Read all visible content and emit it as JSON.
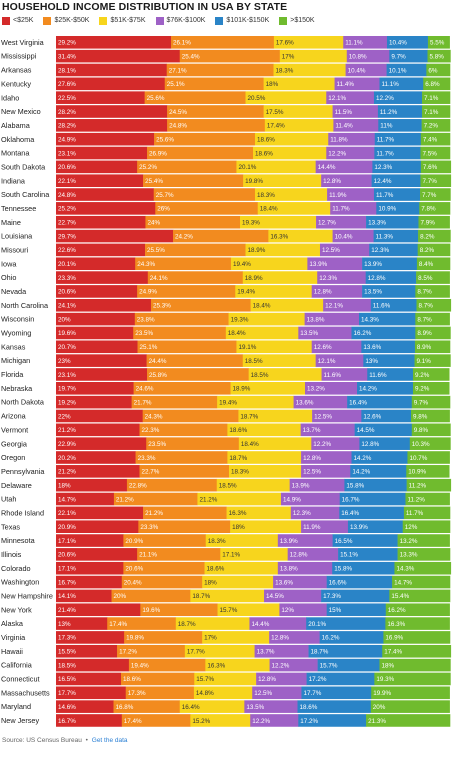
{
  "title": "HOUSEHOLD INCOME DISTRIBUTION IN USA BY STATE",
  "legend": [
    {
      "label": "<$25K",
      "color": "#d42a2a"
    },
    {
      "label": "$25K-$50K",
      "color": "#f28b1f"
    },
    {
      "label": "$51K-$75K",
      "color": "#f7d51d"
    },
    {
      "label": "$76K-$100K",
      "color": "#9e61c6"
    },
    {
      "label": "$101K-$150K",
      "color": "#2a84c7"
    },
    {
      "label": ">$150K",
      "color": "#70bb2e"
    }
  ],
  "footer": {
    "source": "Source: US Census Bureau",
    "separator": "•",
    "link": "Get the data"
  },
  "chart_data": {
    "type": "bar",
    "orientation": "horizontal",
    "stacked": true,
    "xlim": [
      0,
      100
    ],
    "title": "HOUSEHOLD INCOME DISTRIBUTION IN USA BY STATE",
    "categories": [
      "West Virginia",
      "Mississippi",
      "Arkansas",
      "Kentucky",
      "Idaho",
      "New Mexico",
      "Alabama",
      "Oklahoma",
      "Montana",
      "South Dakota",
      "Indiana",
      "South Carolina",
      "Tennessee",
      "Maine",
      "Louisiana",
      "Missouri",
      "Iowa",
      "Ohio",
      "Nevada",
      "North Carolina",
      "Wisconsin",
      "Wyoming",
      "Kansas",
      "Michigan",
      "Florida",
      "Nebraska",
      "North Dakota",
      "Arizona",
      "Vermont",
      "Georgia",
      "Oregon",
      "Pennsylvania",
      "Delaware",
      "Utah",
      "Rhode Island",
      "Texas",
      "Minnesota",
      "Illinois",
      "Colorado",
      "Washington",
      "New Hampshire",
      "New York",
      "Alaska",
      "Virginia",
      "Hawaii",
      "California",
      "Connecticut",
      "Massachusetts",
      "Maryland",
      "New Jersey"
    ],
    "series": [
      {
        "name": "<$25K",
        "labels": [
          "29.2%",
          "31.4%",
          "28.1%",
          "27.6%",
          "22.5%",
          "28.2%",
          "28.2%",
          "24.9%",
          "23.1%",
          "20.6%",
          "22.1%",
          "24.8%",
          "25.2%",
          "22.7%",
          "29.7%",
          "22.6%",
          "20.1%",
          "23.3%",
          "20.6%",
          "24.1%",
          "20%",
          "19.6%",
          "20.7%",
          "23%",
          "23.1%",
          "19.7%",
          "19.2%",
          "22%",
          "21.2%",
          "22.9%",
          "20.2%",
          "21.2%",
          "18%",
          "14.7%",
          "22.1%",
          "20.9%",
          "17.1%",
          "20.6%",
          "17.1%",
          "16.7%",
          "14.1%",
          "21.4%",
          "13%",
          "17.3%",
          "15.5%",
          "18.5%",
          "16.5%",
          "17.7%",
          "14.6%",
          "16.7%"
        ],
        "values": [
          29.2,
          31.4,
          28.1,
          27.6,
          22.5,
          28.2,
          28.2,
          24.9,
          23.1,
          20.6,
          22.1,
          24.8,
          25.2,
          22.7,
          29.7,
          22.6,
          20.1,
          23.3,
          20.6,
          24.1,
          20,
          19.6,
          20.7,
          23,
          23.1,
          19.7,
          19.2,
          22,
          21.2,
          22.9,
          20.2,
          21.2,
          18,
          14.7,
          22.1,
          20.9,
          17.1,
          20.6,
          17.1,
          16.7,
          14.1,
          21.4,
          13,
          17.3,
          15.5,
          18.5,
          16.5,
          17.7,
          14.6,
          16.7
        ]
      },
      {
        "name": "$25K-$50K",
        "labels": [
          "26.1%",
          "25.4%",
          "27.1%",
          "25.1%",
          "25.6%",
          "24.5%",
          "24.8%",
          "25.6%",
          "26.9%",
          "25.2%",
          "25.4%",
          "25.7%",
          "26%",
          "24%",
          "24.2%",
          "25.5%",
          "24.3%",
          "24.1%",
          "24.9%",
          "25.3%",
          "23.8%",
          "23.5%",
          "25.1%",
          "24.4%",
          "25.8%",
          "24.6%",
          "21.7%",
          "24.3%",
          "22.3%",
          "23.5%",
          "23.3%",
          "22.7%",
          "22.8%",
          "21.2%",
          "21.2%",
          "23.3%",
          "20.9%",
          "21.1%",
          "20.6%",
          "20.4%",
          "20%",
          "19.6%",
          "17.4%",
          "19.8%",
          "17.2%",
          "19.4%",
          "18.6%",
          "17.3%",
          "16.8%",
          "17.4%"
        ],
        "values": [
          26.1,
          25.4,
          27.1,
          25.1,
          25.6,
          24.5,
          24.8,
          25.6,
          26.9,
          25.2,
          25.4,
          25.7,
          26,
          24,
          24.2,
          25.5,
          24.3,
          24.1,
          24.9,
          25.3,
          23.8,
          23.5,
          25.1,
          24.4,
          25.8,
          24.6,
          21.7,
          24.3,
          22.3,
          23.5,
          23.3,
          22.7,
          22.8,
          21.2,
          21.2,
          23.3,
          20.9,
          21.1,
          20.6,
          20.4,
          20,
          19.6,
          17.4,
          19.8,
          17.2,
          19.4,
          18.6,
          17.3,
          16.8,
          17.4
        ]
      },
      {
        "name": "$51K-$75K",
        "labels": [
          "17.6%",
          "17%",
          "18.3%",
          "18%",
          "20.5%",
          "17.5%",
          "17.4%",
          "18.6%",
          "18.6%",
          "20.1%",
          "19.8%",
          "18.3%",
          "18.4%",
          "19.3%",
          "16.3%",
          "18.9%",
          "19.4%",
          "18.9%",
          "19.4%",
          "18.4%",
          "19.3%",
          "18.4%",
          "19.1%",
          "18.5%",
          "18.5%",
          "18.9%",
          "19.4%",
          "18.7%",
          "18.6%",
          "18.4%",
          "18.7%",
          "18.3%",
          "18.5%",
          "21.2%",
          "16.3%",
          "18%",
          "18.3%",
          "17.1%",
          "18.6%",
          "18%",
          "18.7%",
          "15.7%",
          "18.7%",
          "17%",
          "17.7%",
          "16.3%",
          "15.7%",
          "14.8%",
          "16.4%",
          "15.2%"
        ],
        "values": [
          17.6,
          17,
          18.3,
          18,
          20.5,
          17.5,
          17.4,
          18.6,
          18.6,
          20.1,
          19.8,
          18.3,
          18.4,
          19.3,
          16.3,
          18.9,
          19.4,
          18.9,
          19.4,
          18.4,
          19.3,
          18.4,
          19.1,
          18.5,
          18.5,
          18.9,
          19.4,
          18.7,
          18.6,
          18.4,
          18.7,
          18.3,
          18.5,
          21.2,
          16.3,
          18,
          18.3,
          17.1,
          18.6,
          18,
          18.7,
          15.7,
          18.7,
          17,
          17.7,
          16.3,
          15.7,
          14.8,
          16.4,
          15.2
        ]
      },
      {
        "name": "$76K-$100K",
        "labels": [
          "11.1%",
          "10.8%",
          "10.4%",
          "11.4%",
          "12.1%",
          "11.5%",
          "11.4%",
          "11.8%",
          "12.2%",
          "14.4%",
          "12.8%",
          "11.9%",
          "11.7%",
          "12.7%",
          "10.4%",
          "12.5%",
          "13.9%",
          "12.3%",
          "12.8%",
          "12.1%",
          "13.8%",
          "13.5%",
          "12.6%",
          "12.1%",
          "11.6%",
          "13.2%",
          "13.6%",
          "12.5%",
          "13.7%",
          "12.2%",
          "12.8%",
          "12.5%",
          "13.9%",
          "14.9%",
          "12.3%",
          "11.9%",
          "13.9%",
          "12.8%",
          "13.8%",
          "13.6%",
          "14.5%",
          "12%",
          "14.4%",
          "12.8%",
          "13.7%",
          "12.2%",
          "12.8%",
          "12.5%",
          "13.5%",
          "12.2%"
        ],
        "values": [
          11.1,
          10.8,
          10.4,
          11.4,
          12.1,
          11.5,
          11.4,
          11.8,
          12.2,
          14.4,
          12.8,
          11.9,
          11.7,
          12.7,
          10.4,
          12.5,
          13.9,
          12.3,
          12.8,
          12.1,
          13.8,
          13.5,
          12.6,
          12.1,
          11.6,
          13.2,
          13.6,
          12.5,
          13.7,
          12.2,
          12.8,
          12.5,
          13.9,
          14.9,
          12.3,
          11.9,
          13.9,
          12.8,
          13.8,
          13.6,
          14.5,
          12,
          14.4,
          12.8,
          13.7,
          12.2,
          12.8,
          12.5,
          13.5,
          12.2
        ]
      },
      {
        "name": "$101K-$150K",
        "labels": [
          "10.4%",
          "9.7%",
          "10.1%",
          "11.1%",
          "12.2%",
          "11.2%",
          "11%",
          "11.7%",
          "11.7%",
          "12.3%",
          "12.4%",
          "11.7%",
          "10.9%",
          "13.3%",
          "11.3%",
          "12.3%",
          "13.9%",
          "12.8%",
          "13.5%",
          "11.6%",
          "14.3%",
          "16.2%",
          "13.6%",
          "13%",
          "11.6%",
          "14.2%",
          "16.4%",
          "12.6%",
          "14.5%",
          "12.8%",
          "14.2%",
          "14.2%",
          "15.8%",
          "16.7%",
          "16.4%",
          "13.9%",
          "16.5%",
          "15.1%",
          "15.8%",
          "16.6%",
          "17.3%",
          "15%",
          "20.1%",
          "16.2%",
          "18.7%",
          "15.7%",
          "17.2%",
          "17.7%",
          "18.6%",
          "17.2%"
        ],
        "values": [
          10.4,
          9.7,
          10.1,
          11.1,
          12.2,
          11.2,
          11,
          11.7,
          11.7,
          12.3,
          12.4,
          11.7,
          10.9,
          13.3,
          11.3,
          12.3,
          13.9,
          12.8,
          13.5,
          11.6,
          14.3,
          16.2,
          13.6,
          13,
          11.6,
          14.2,
          16.4,
          12.6,
          14.5,
          12.8,
          14.2,
          14.2,
          15.8,
          16.7,
          16.4,
          13.9,
          16.5,
          15.1,
          15.8,
          16.6,
          17.3,
          15,
          20.1,
          16.2,
          18.7,
          15.7,
          17.2,
          17.7,
          18.6,
          17.2
        ]
      },
      {
        "name": ">$150K",
        "labels": [
          "5.5%",
          "5.8%",
          "6%",
          "6.8%",
          "7.1%",
          "7.1%",
          "7.2%",
          "7.4%",
          "7.5%",
          "7.6%",
          "7.7%",
          "7.7%",
          "7.8%",
          "7.9%",
          "8.2%",
          "8.2%",
          "8.4%",
          "8.5%",
          "8.7%",
          "8.7%",
          "8.7%",
          "8.9%",
          "8.9%",
          "9.1%",
          "9.2%",
          "9.2%",
          "9.7%",
          "9.8%",
          "9.8%",
          "10.3%",
          "10.7%",
          "10.9%",
          "11.2%",
          "11.2%",
          "11.7%",
          "12%",
          "13.2%",
          "13.3%",
          "14.3%",
          "14.7%",
          "15.4%",
          "16.2%",
          "16.3%",
          "16.9%",
          "17.4%",
          "18%",
          "19.3%",
          "19.9%",
          "20%",
          "21.3%"
        ],
        "values": [
          5.5,
          5.8,
          6,
          6.8,
          7.1,
          7.1,
          7.2,
          7.4,
          7.5,
          7.6,
          7.7,
          7.7,
          7.8,
          7.9,
          8.2,
          8.2,
          8.4,
          8.5,
          8.7,
          8.7,
          8.7,
          8.9,
          8.9,
          9.1,
          9.2,
          9.2,
          9.7,
          9.8,
          9.8,
          10.3,
          10.7,
          10.9,
          11.2,
          11.2,
          11.7,
          12,
          13.2,
          13.3,
          14.3,
          14.7,
          15.4,
          16.2,
          16.3,
          16.9,
          17.4,
          18,
          19.3,
          19.9,
          20,
          21.3
        ]
      }
    ]
  }
}
